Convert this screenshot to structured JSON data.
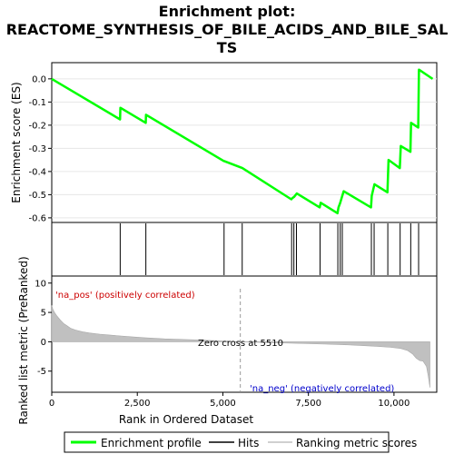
{
  "chart_data": [
    {
      "type": "line",
      "panel": "enrichment",
      "title_lines": [
        "Enrichment plot:",
        "REACTOME_SYNTHESIS_OF_BILE_ACIDS_AND_BILE_SAL",
        "TS"
      ],
      "ylabel": "Enrichment score (ES)",
      "ylim": [
        -0.62,
        0.07
      ],
      "yticks": [
        0.0,
        -0.1,
        -0.2,
        -0.3,
        -0.4,
        -0.5,
        -0.6
      ],
      "ytick_labels": [
        "0.0",
        "-0.1",
        "-0.2",
        "-0.3",
        "-0.4",
        "-0.5",
        "-0.6"
      ],
      "xlim": [
        0,
        11250
      ],
      "series": [
        {
          "name": "Enrichment profile",
          "color": "#00ff00",
          "x": [
            0,
            1995,
            2005,
            2745,
            2755,
            5030,
            5040,
            5570,
            7000,
            7030,
            7080,
            7160,
            7830,
            7860,
            8350,
            8380,
            8430,
            8480,
            8530,
            9330,
            9350,
            9430,
            9810,
            9840,
            10170,
            10200,
            10480,
            10500,
            10710,
            10730,
            11130
          ],
          "y": [
            0.0,
            -0.175,
            -0.125,
            -0.19,
            -0.155,
            -0.355,
            -0.355,
            -0.385,
            -0.52,
            -0.515,
            -0.51,
            -0.495,
            -0.555,
            -0.535,
            -0.58,
            -0.555,
            -0.535,
            -0.51,
            -0.485,
            -0.555,
            -0.505,
            -0.455,
            -0.49,
            -0.35,
            -0.385,
            -0.29,
            -0.315,
            -0.19,
            -0.21,
            0.04,
            0.0
          ]
        }
      ]
    },
    {
      "type": "scatter",
      "panel": "hits",
      "series": [
        {
          "name": "Hits",
          "color": "#000000",
          "x": [
            2000,
            2750,
            5035,
            5565,
            7010,
            7075,
            7150,
            7840,
            8360,
            8430,
            8490,
            9340,
            9420,
            9820,
            10180,
            10490,
            10720
          ]
        }
      ]
    },
    {
      "type": "area",
      "panel": "ranked-metric",
      "ylabel": "Ranked list metric (PreRanked)",
      "xlabel": "Rank in Ordered Dataset",
      "xlim": [
        0,
        11250
      ],
      "ylim": [
        -8.6,
        11.2
      ],
      "yticks": [
        10,
        5,
        0,
        -5
      ],
      "ytick_labels": [
        "10",
        "5",
        "0",
        "-5"
      ],
      "xticks": [
        0,
        2500,
        5000,
        7500,
        10000
      ],
      "xtick_labels": [
        "0",
        "2,500",
        "5,000",
        "7,500",
        "10,000"
      ],
      "color_bar": [
        "#dd0000",
        "#e8343d",
        "#f06070",
        "#f5a0c0",
        "#f8c8e6",
        "#d8d8f8",
        "#b8b8f0",
        "#7070e0",
        "#2020d0"
      ],
      "color_bar_breaks": [
        0,
        400,
        1550,
        2350,
        3700,
        5510,
        7250,
        8780,
        9520,
        10500,
        11050
      ],
      "series": [
        {
          "name": "Ranking metric scores",
          "color": "#c0c0c0",
          "x": [
            0,
            30,
            80,
            150,
            250,
            350,
            450,
            550,
            700,
            900,
            1100,
            1400,
            1800,
            2200,
            2700,
            3300,
            4000,
            4700,
            5300,
            5510,
            6000,
            6500,
            7000,
            7500,
            8000,
            8500,
            9000,
            9500,
            9900,
            10200,
            10400,
            10550,
            10650,
            10750,
            10850,
            10950,
            11000,
            11050
          ],
          "y": [
            6.2,
            5.6,
            5.0,
            4.4,
            3.7,
            3.1,
            2.7,
            2.3,
            2.0,
            1.7,
            1.5,
            1.3,
            1.1,
            0.9,
            0.7,
            0.5,
            0.35,
            0.2,
            0.07,
            0.0,
            -0.08,
            -0.15,
            -0.25,
            -0.32,
            -0.4,
            -0.5,
            -0.62,
            -0.78,
            -0.95,
            -1.15,
            -1.5,
            -2.1,
            -2.8,
            -3.2,
            -3.3,
            -4.2,
            -5.8,
            -7.8
          ]
        }
      ],
      "annotations": [
        {
          "text": "'na_pos' (positively correlated)",
          "color": "#cc0000"
        },
        {
          "text": "Zero cross at 5510",
          "color": "#000000",
          "x": 5510
        },
        {
          "text": "'na_neg' (negatively correlated)",
          "color": "#0000cc"
        }
      ]
    }
  ],
  "legend": {
    "items": [
      {
        "label": "Enrichment profile",
        "color": "#00ff00",
        "kind": "line"
      },
      {
        "label": "Hits",
        "color": "#000000",
        "kind": "line"
      },
      {
        "label": "Ranking metric scores",
        "color": "#c0c0c0",
        "kind": "line"
      }
    ]
  }
}
